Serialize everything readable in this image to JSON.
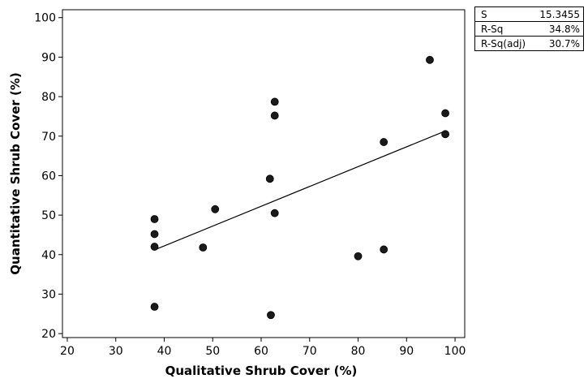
{
  "chart_data": {
    "type": "scatter",
    "xlabel": "Qualitative Shrub Cover (%)",
    "ylabel": "Quantitative Shrub Cover (%)",
    "xlim": [
      19,
      102
    ],
    "ylim": [
      19,
      102
    ],
    "xticks": [
      20,
      30,
      40,
      50,
      60,
      70,
      80,
      90,
      100
    ],
    "yticks": [
      20,
      30,
      40,
      50,
      60,
      70,
      80,
      90,
      100
    ],
    "points": [
      {
        "x": 38,
        "y": 49
      },
      {
        "x": 38,
        "y": 45.2
      },
      {
        "x": 38,
        "y": 42
      },
      {
        "x": 38,
        "y": 26.8
      },
      {
        "x": 48,
        "y": 41.8
      },
      {
        "x": 50.5,
        "y": 51.5
      },
      {
        "x": 61.8,
        "y": 59.2
      },
      {
        "x": 62,
        "y": 24.7
      },
      {
        "x": 62.8,
        "y": 78.7
      },
      {
        "x": 62.8,
        "y": 75.2
      },
      {
        "x": 62.8,
        "y": 50.5
      },
      {
        "x": 80,
        "y": 39.6
      },
      {
        "x": 85.3,
        "y": 68.5
      },
      {
        "x": 85.3,
        "y": 41.3
      },
      {
        "x": 94.8,
        "y": 89.3
      },
      {
        "x": 98,
        "y": 75.8
      },
      {
        "x": 98,
        "y": 70.5
      }
    ],
    "fit_line": {
      "x": [
        38,
        98
      ],
      "y": [
        41.2,
        71.3
      ]
    },
    "grid": false,
    "stats": [
      {
        "label": "S",
        "value": "15.3455"
      },
      {
        "label": "R-Sq",
        "value": "34.8%"
      },
      {
        "label": "R-Sq(adj)",
        "value": "30.7%"
      }
    ]
  }
}
